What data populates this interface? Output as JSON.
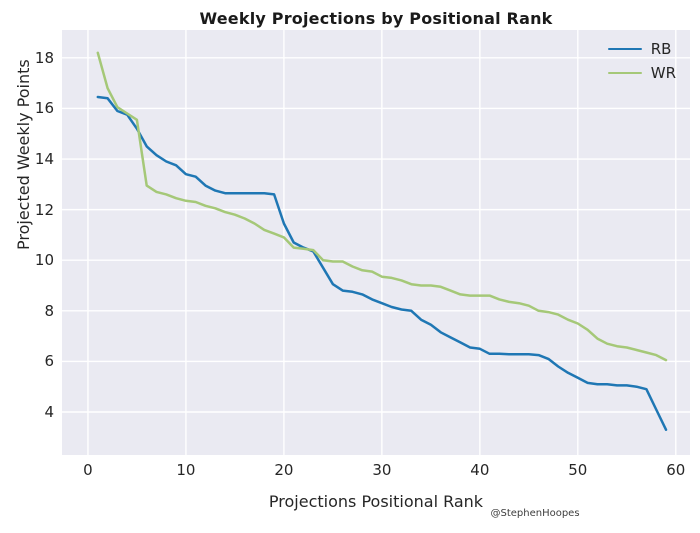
{
  "title": "Weekly Projections by Positional Rank",
  "watermark": "@StephenHoopes",
  "colors": {
    "rb_line": "#1f77b4",
    "wr_line": "#a5c878",
    "plot_background": "#eaeaf2",
    "grid": "#ffffff",
    "text": "#262626"
  },
  "chart_data": {
    "type": "line",
    "title": "Weekly Projections by Positional Rank",
    "xlabel": "Projections Positional Rank",
    "ylabel": "Projected Weekly Points",
    "x_ticks": [
      0,
      10,
      20,
      30,
      40,
      50,
      60
    ],
    "y_ticks": [
      4,
      6,
      8,
      10,
      12,
      14,
      16,
      18
    ],
    "xlim": [
      -2.65,
      61.45
    ],
    "ylim": [
      2.3,
      19.1
    ],
    "grid": true,
    "legend_position": "upper right",
    "x": [
      1,
      2,
      3,
      4,
      5,
      6,
      7,
      8,
      9,
      10,
      11,
      12,
      13,
      14,
      15,
      16,
      17,
      18,
      19,
      20,
      21,
      22,
      23,
      24,
      25,
      26,
      27,
      28,
      29,
      30,
      31,
      32,
      33,
      34,
      35,
      36,
      37,
      38,
      39,
      40,
      41,
      42,
      43,
      44,
      45,
      46,
      47,
      48,
      49,
      50,
      51,
      52,
      53,
      54,
      55,
      56,
      57,
      58,
      59
    ],
    "series": [
      {
        "name": "RB",
        "color": "#1f77b4",
        "values": [
          16.45,
          16.4,
          15.9,
          15.75,
          15.2,
          14.5,
          14.15,
          13.9,
          13.75,
          13.4,
          13.3,
          12.95,
          12.75,
          12.65,
          12.65,
          12.65,
          12.65,
          12.65,
          12.6,
          11.45,
          10.7,
          10.5,
          10.35,
          9.7,
          9.05,
          8.8,
          8.75,
          8.65,
          8.45,
          8.3,
          8.15,
          8.05,
          8.0,
          7.65,
          7.45,
          7.15,
          6.95,
          6.75,
          6.55,
          6.5,
          6.3,
          6.3,
          6.28,
          6.28,
          6.28,
          6.25,
          6.1,
          5.8,
          5.55,
          5.35,
          5.15,
          5.1,
          5.1,
          5.05,
          5.05,
          5.0,
          4.9,
          4.1,
          3.3
        ]
      },
      {
        "name": "WR",
        "color": "#a5c878",
        "values": [
          18.2,
          16.8,
          16.05,
          15.8,
          15.55,
          12.95,
          12.7,
          12.6,
          12.45,
          12.35,
          12.3,
          12.15,
          12.05,
          11.9,
          11.8,
          11.65,
          11.45,
          11.2,
          11.05,
          10.9,
          10.5,
          10.45,
          10.4,
          10.0,
          9.95,
          9.95,
          9.75,
          9.6,
          9.55,
          9.35,
          9.3,
          9.2,
          9.05,
          9.0,
          9.0,
          8.95,
          8.8,
          8.65,
          8.6,
          8.6,
          8.6,
          8.45,
          8.35,
          8.3,
          8.2,
          8.0,
          7.95,
          7.85,
          7.65,
          7.5,
          7.25,
          6.9,
          6.7,
          6.6,
          6.55,
          6.45,
          6.35,
          6.25,
          6.05
        ]
      }
    ]
  }
}
